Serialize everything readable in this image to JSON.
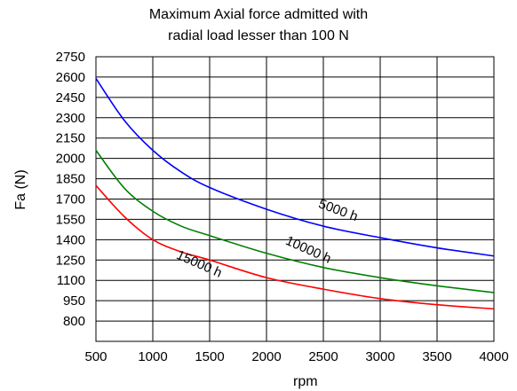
{
  "chart_data": {
    "type": "line",
    "title": "Maximum Axial force admitted with",
    "subtitle": "radial load lesser than 100 N",
    "xlabel": "rpm",
    "ylabel": "Fa (N)",
    "xlim": [
      500,
      4000
    ],
    "ylim": [
      650,
      2750
    ],
    "xticks": [
      500,
      1000,
      1500,
      2000,
      2500,
      3000,
      3500,
      4000
    ],
    "yticks": [
      800,
      950,
      1100,
      1250,
      1400,
      1550,
      1700,
      1850,
      2000,
      2150,
      2300,
      2450,
      2600,
      2750
    ],
    "grid": true,
    "series": [
      {
        "name": "5000 h",
        "color": "#0000ff",
        "x": [
          500,
          750,
          1000,
          1250,
          1500,
          2000,
          2500,
          3000,
          3500,
          4000
        ],
        "y": [
          2590,
          2280,
          2060,
          1900,
          1785,
          1625,
          1500,
          1415,
          1340,
          1280
        ]
      },
      {
        "name": "10000 h",
        "color": "#008000",
        "x": [
          500,
          750,
          1000,
          1250,
          1500,
          2000,
          2500,
          3000,
          3500,
          4000
        ],
        "y": [
          2060,
          1780,
          1610,
          1500,
          1430,
          1300,
          1195,
          1120,
          1060,
          1010
        ]
      },
      {
        "name": "15000 h",
        "color": "#ff0000",
        "x": [
          500,
          750,
          1000,
          1250,
          1500,
          2000,
          2500,
          3000,
          3500,
          4000
        ],
        "y": [
          1800,
          1570,
          1400,
          1310,
          1250,
          1120,
          1035,
          965,
          920,
          890
        ]
      }
    ]
  }
}
